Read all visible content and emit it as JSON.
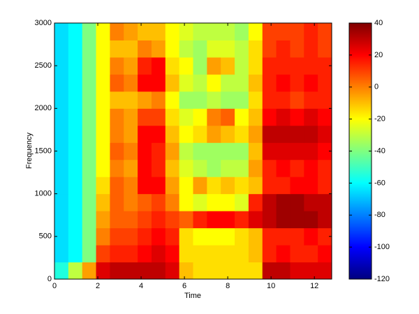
{
  "chart_data": {
    "type": "heatmap",
    "xlabel": "Time",
    "ylabel": "Frequency",
    "x": [
      0.32,
      0.96,
      1.6,
      2.24,
      2.88,
      3.52,
      4.16,
      4.8,
      5.44,
      6.08,
      6.72,
      7.36,
      8.0,
      8.64,
      9.28,
      9.92,
      10.56,
      11.2,
      11.84,
      12.48
    ],
    "y": [
      100,
      300,
      500,
      700,
      900,
      1100,
      1300,
      1500,
      1700,
      1900,
      2100,
      2300,
      2500,
      2700,
      2900
    ],
    "values": [
      [
        -55,
        -30,
        -5,
        25,
        30,
        30,
        30,
        30,
        25,
        -10,
        -15,
        -15,
        -15,
        -15,
        -15,
        30,
        30,
        25,
        25,
        25
      ],
      [
        -65,
        -60,
        -40,
        10,
        15,
        15,
        20,
        25,
        20,
        -15,
        -15,
        -15,
        -15,
        -15,
        -10,
        15,
        20,
        15,
        15,
        20
      ],
      [
        -65,
        -60,
        -40,
        0,
        10,
        10,
        15,
        20,
        15,
        -15,
        -20,
        -20,
        -20,
        -15,
        -10,
        15,
        15,
        15,
        20,
        15
      ],
      [
        -65,
        -60,
        -40,
        -5,
        5,
        5,
        10,
        15,
        10,
        5,
        15,
        20,
        20,
        15,
        25,
        30,
        35,
        35,
        35,
        30
      ],
      [
        -65,
        -60,
        -40,
        -10,
        5,
        0,
        5,
        10,
        0,
        -20,
        -25,
        -20,
        -20,
        -25,
        15,
        30,
        35,
        35,
        30,
        30
      ],
      [
        -65,
        -60,
        -40,
        -15,
        5,
        0,
        20,
        20,
        -5,
        -20,
        -5,
        -15,
        -10,
        -15,
        -10,
        15,
        15,
        20,
        20,
        15
      ],
      [
        -65,
        -60,
        -40,
        -20,
        0,
        -5,
        20,
        15,
        -10,
        -25,
        -30,
        -35,
        -30,
        -30,
        -5,
        15,
        20,
        15,
        20,
        15
      ],
      [
        -65,
        -60,
        -40,
        -20,
        5,
        0,
        20,
        15,
        -5,
        -30,
        -35,
        -35,
        -35,
        -35,
        -10,
        25,
        25,
        25,
        25,
        20
      ],
      [
        -65,
        -60,
        -40,
        -20,
        0,
        -5,
        20,
        20,
        -10,
        -20,
        -15,
        -5,
        -10,
        -15,
        -5,
        30,
        30,
        30,
        30,
        25
      ],
      [
        -65,
        -60,
        -40,
        -20,
        0,
        -5,
        10,
        10,
        -15,
        -25,
        -20,
        0,
        5,
        -20,
        -10,
        20,
        25,
        20,
        25,
        20
      ],
      [
        -65,
        -60,
        -40,
        -20,
        -10,
        -10,
        -5,
        0,
        -20,
        -35,
        -35,
        -30,
        -35,
        -35,
        -15,
        15,
        15,
        10,
        15,
        15
      ],
      [
        -65,
        -60,
        -40,
        -20,
        5,
        0,
        20,
        20,
        -10,
        -25,
        -30,
        -20,
        -30,
        -30,
        -10,
        15,
        20,
        15,
        20,
        15
      ],
      [
        -65,
        -60,
        -40,
        -20,
        0,
        -5,
        15,
        20,
        -15,
        -20,
        -35,
        -5,
        -10,
        -30,
        -15,
        15,
        15,
        15,
        15,
        15
      ],
      [
        -65,
        -60,
        -40,
        -20,
        -10,
        -10,
        0,
        -5,
        -20,
        -30,
        -35,
        -25,
        -25,
        -30,
        -15,
        10,
        15,
        10,
        15,
        10
      ],
      [
        -65,
        -60,
        -40,
        -20,
        0,
        -5,
        -10,
        -10,
        -20,
        -25,
        -30,
        -30,
        -30,
        -35,
        -20,
        10,
        10,
        10,
        15,
        10
      ]
    ],
    "xlim": [
      0,
      12.8
    ],
    "xticks": [
      0,
      2,
      4,
      6,
      8,
      10,
      12
    ],
    "ylim": [
      0,
      3000
    ],
    "yticks": [
      0,
      500,
      1000,
      1500,
      2000,
      2500,
      3000
    ],
    "colormap": "jet",
    "clim": [
      -120,
      40
    ],
    "cticks": [
      -120,
      -100,
      -80,
      -60,
      -40,
      -20,
      0,
      20,
      40
    ]
  }
}
